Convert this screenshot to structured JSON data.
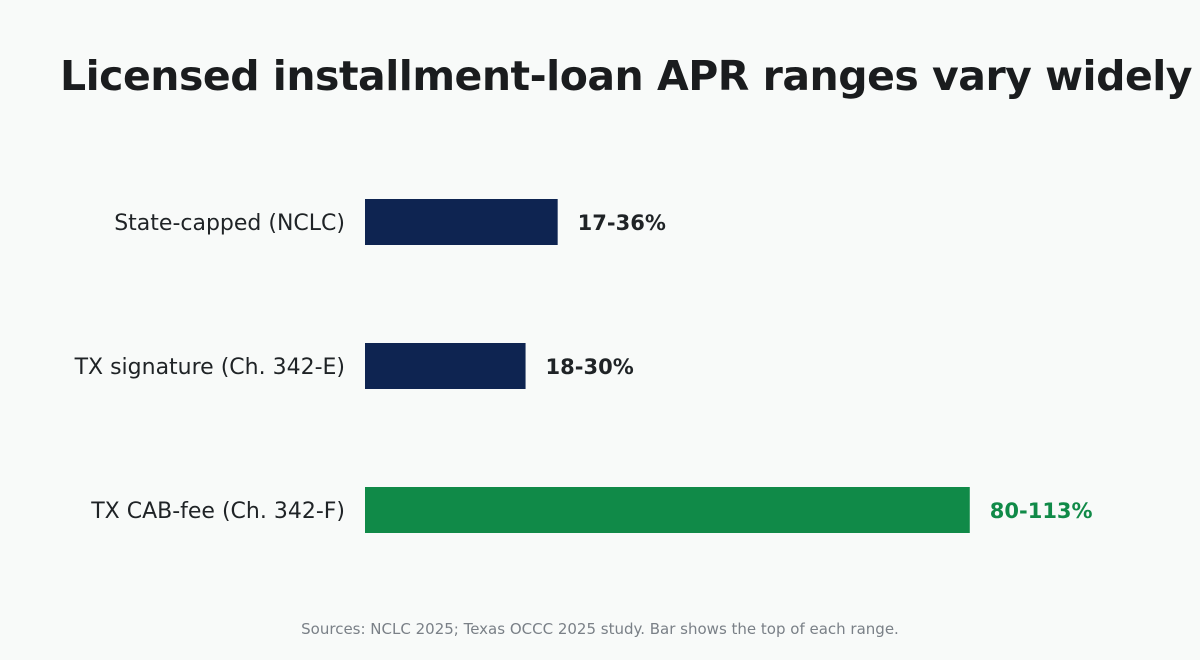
{
  "chart_data": {
    "type": "bar",
    "orientation": "horizontal",
    "title": "Licensed installment-loan APR ranges vary widely",
    "categories": [
      "State-capped (NCLC)",
      "TX signature (Ch. 342-E)",
      "TX CAB-fee (Ch. 342-F)"
    ],
    "values": [
      36,
      30,
      113
    ],
    "value_labels": [
      "17-36%",
      "18-30%",
      "80-113%"
    ],
    "bar_colors": [
      "#0e2451",
      "#0e2451",
      "#108a48"
    ],
    "label_colors": [
      "#1f2326",
      "#1f2326",
      "#108a48"
    ],
    "xlim": [
      0,
      125
    ],
    "grid": false,
    "axes_visible": false,
    "note": "Sources: NCLC 2025; Texas OCCC 2025 study. Bar shows the top of each range."
  }
}
